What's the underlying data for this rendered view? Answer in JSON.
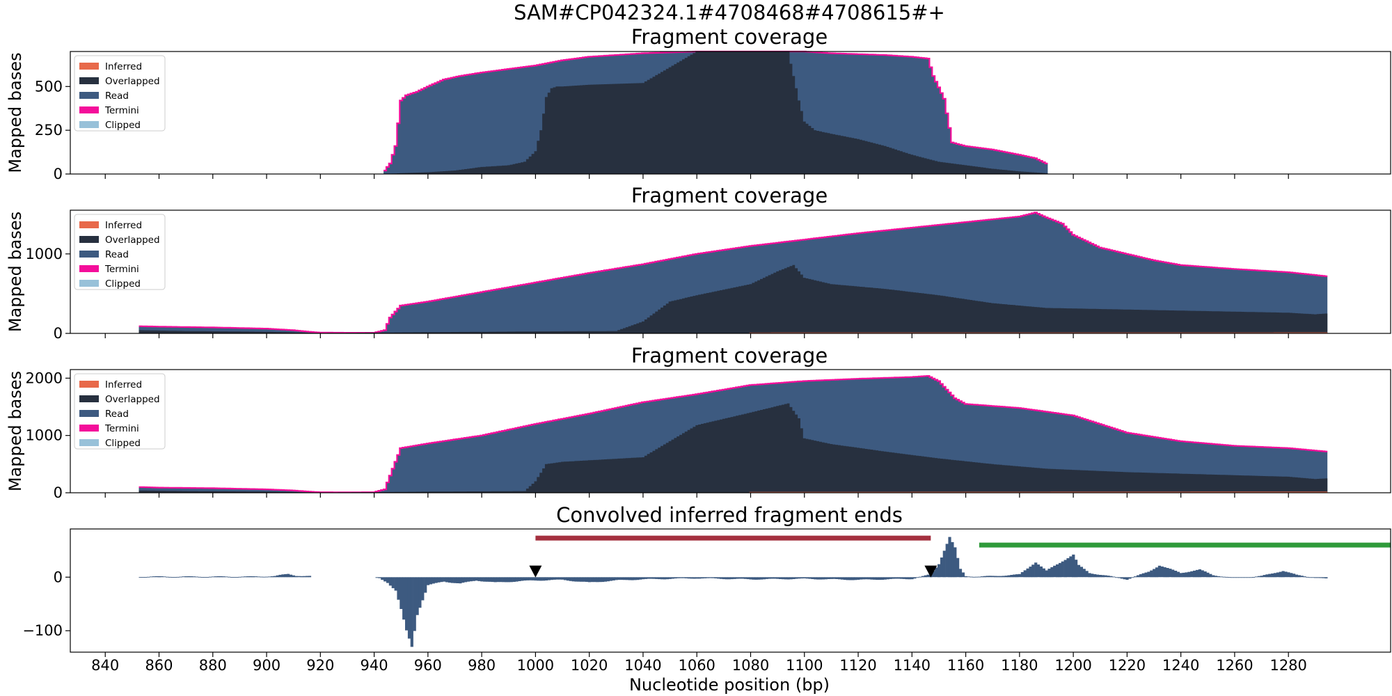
{
  "figure_title": "SAM#CP042324.1#4708468#4708615#+",
  "colors": {
    "Inferred": "#e8694a",
    "Overlapped": "#27303f",
    "Read": "#3d5a80",
    "Termini": "#f40e9a",
    "Clipped": "#98c1d9",
    "convolved": "#3d5a80",
    "red_bar": "#a4303f",
    "green_bar": "#2f9a3a"
  },
  "x_axis": {
    "label": "Nucleotide position (bp)",
    "range": [
      827,
      1318
    ],
    "ticks": [
      840,
      860,
      880,
      900,
      920,
      940,
      960,
      980,
      1000,
      1020,
      1040,
      1060,
      1080,
      1100,
      1120,
      1140,
      1160,
      1180,
      1200,
      1220,
      1240,
      1260,
      1280
    ]
  },
  "chart_data": [
    {
      "type": "area",
      "title": "Fragment coverage",
      "ylabel": "Mapped bases",
      "ylim": [
        0,
        700
      ],
      "yticks": [
        0,
        250,
        500
      ],
      "legend": [
        "Inferred",
        "Overlapped",
        "Read",
        "Termini",
        "Clipped"
      ],
      "legend_position": "upper-left",
      "series": [
        {
          "name": "Read",
          "x": [
            944,
            946,
            948,
            950,
            952,
            956,
            960,
            966,
            972,
            980,
            990,
            1000,
            1010,
            1020,
            1040,
            1060,
            1080,
            1095,
            1100,
            1110,
            1120,
            1130,
            1140,
            1146,
            1148,
            1152,
            1155,
            1160,
            1170,
            1180,
            1186,
            1190
          ],
          "y": [
            20,
            60,
            160,
            420,
            450,
            470,
            500,
            540,
            560,
            580,
            600,
            620,
            650,
            670,
            690,
            700,
            700,
            700,
            700,
            690,
            685,
            680,
            670,
            660,
            560,
            430,
            180,
            160,
            140,
            110,
            90,
            60
          ]
        },
        {
          "name": "Overlapped",
          "x": [
            944,
            950,
            960,
            970,
            980,
            990,
            996,
            1000,
            1002,
            1004,
            1006,
            1008,
            1010,
            1020,
            1040,
            1060,
            1080,
            1094,
            1096,
            1098,
            1100,
            1104,
            1110,
            1120,
            1130,
            1140,
            1150,
            1160,
            1170,
            1180,
            1190
          ],
          "y": [
            0,
            5,
            10,
            20,
            40,
            50,
            70,
            130,
            250,
            440,
            490,
            500,
            500,
            510,
            520,
            700,
            700,
            700,
            560,
            420,
            300,
            250,
            230,
            200,
            160,
            110,
            70,
            50,
            30,
            15,
            5
          ]
        },
        {
          "name": "Termini",
          "x": [
            944,
            1190
          ],
          "y": [
            0,
            0
          ]
        }
      ]
    },
    {
      "type": "area",
      "title": "Fragment coverage",
      "ylabel": "Mapped bases",
      "ylim": [
        0,
        1550
      ],
      "yticks": [
        0,
        1000
      ],
      "legend": [
        "Inferred",
        "Overlapped",
        "Read",
        "Termini",
        "Clipped"
      ],
      "legend_position": "upper-left",
      "series": [
        {
          "name": "Read",
          "x": [
            853,
            860,
            880,
            900,
            910,
            916,
            920,
            930,
            940,
            944,
            946,
            950,
            960,
            980,
            1000,
            1020,
            1040,
            1060,
            1080,
            1100,
            1120,
            1140,
            1160,
            1180,
            1186,
            1190,
            1196,
            1200,
            1210,
            1220,
            1230,
            1240,
            1260,
            1280,
            1294
          ],
          "y": [
            90,
            85,
            75,
            60,
            40,
            20,
            10,
            8,
            8,
            40,
            200,
            350,
            400,
            520,
            640,
            760,
            870,
            1000,
            1100,
            1180,
            1260,
            1330,
            1400,
            1470,
            1520,
            1460,
            1380,
            1240,
            1080,
            1000,
            920,
            860,
            810,
            770,
            720
          ]
        },
        {
          "name": "Overlapped",
          "x": [
            853,
            870,
            900,
            920,
            940,
            960,
            980,
            1000,
            1030,
            1040,
            1050,
            1060,
            1080,
            1090,
            1096,
            1100,
            1110,
            1130,
            1150,
            1170,
            1190,
            1220,
            1250,
            1280,
            1290,
            1294
          ],
          "y": [
            40,
            30,
            20,
            5,
            10,
            15,
            20,
            25,
            30,
            150,
            400,
            480,
            620,
            780,
            860,
            700,
            620,
            560,
            480,
            380,
            320,
            300,
            280,
            260,
            240,
            250
          ]
        },
        {
          "name": "Inferred",
          "x": [
            1080,
            1294
          ],
          "y": [
            10,
            12
          ]
        }
      ]
    },
    {
      "type": "area",
      "title": "Fragment coverage",
      "ylabel": "Mapped bases",
      "ylim": [
        0,
        2150
      ],
      "yticks": [
        0,
        1000,
        2000
      ],
      "legend": [
        "Inferred",
        "Overlapped",
        "Read",
        "Termini",
        "Clipped"
      ],
      "legend_position": "upper-left",
      "series": [
        {
          "name": "Read",
          "x": [
            853,
            860,
            880,
            900,
            910,
            916,
            920,
            930,
            940,
            944,
            946,
            950,
            960,
            980,
            1000,
            1020,
            1040,
            1060,
            1080,
            1100,
            1120,
            1140,
            1146,
            1150,
            1156,
            1160,
            1180,
            1200,
            1210,
            1220,
            1240,
            1260,
            1280,
            1294
          ],
          "y": [
            100,
            90,
            80,
            60,
            40,
            20,
            10,
            8,
            10,
            60,
            300,
            780,
            860,
            1000,
            1200,
            1380,
            1580,
            1720,
            1880,
            1950,
            1990,
            2020,
            2040,
            1950,
            1650,
            1550,
            1480,
            1350,
            1200,
            1050,
            900,
            820,
            780,
            720
          ]
        },
        {
          "name": "Overlapped",
          "x": [
            853,
            870,
            900,
            920,
            940,
            960,
            980,
            996,
            1000,
            1004,
            1010,
            1040,
            1050,
            1060,
            1080,
            1094,
            1098,
            1100,
            1110,
            1130,
            1150,
            1170,
            1190,
            1220,
            1250,
            1280,
            1290,
            1294
          ],
          "y": [
            40,
            30,
            20,
            5,
            10,
            20,
            25,
            30,
            200,
            500,
            540,
            620,
            900,
            1180,
            1400,
            1560,
            1300,
            950,
            850,
            720,
            600,
            500,
            420,
            360,
            320,
            280,
            240,
            250
          ]
        },
        {
          "name": "Inferred",
          "x": [
            1080,
            1294
          ],
          "y": [
            15,
            20
          ]
        }
      ]
    },
    {
      "type": "bar",
      "title": "Convolved inferred fragment ends",
      "ylabel": "",
      "ylim": [
        -140,
        90
      ],
      "yticks": [
        -100,
        0
      ],
      "series": [
        {
          "name": "convolved",
          "x": [
            853,
            858,
            866,
            876,
            885,
            895,
            903,
            908,
            911,
            914,
            942,
            945,
            948,
            950,
            952,
            954,
            956,
            960,
            966,
            972,
            978,
            985,
            992,
            1000,
            1010,
            1020,
            1030,
            1040,
            1050,
            1060,
            1080,
            1100,
            1120,
            1140,
            1147,
            1150,
            1152,
            1154,
            1156,
            1158,
            1160,
            1165,
            1170,
            1180,
            1186,
            1190,
            1196,
            1200,
            1202,
            1206,
            1212,
            1220,
            1228,
            1232,
            1240,
            1247,
            1252,
            1260,
            1270,
            1278,
            1283,
            1290,
            1294
          ],
          "y": [
            1,
            1,
            1,
            1,
            1,
            1,
            2,
            6,
            3,
            2,
            -2,
            -10,
            -25,
            -60,
            -100,
            -130,
            -70,
            -15,
            -8,
            -12,
            -6,
            -10,
            -8,
            -6,
            -5,
            -10,
            -6,
            -4,
            -3,
            -2,
            -4,
            -3,
            -5,
            -3,
            5,
            25,
            50,
            75,
            55,
            15,
            2,
            1,
            2,
            5,
            28,
            12,
            30,
            42,
            22,
            8,
            3,
            -4,
            10,
            22,
            8,
            14,
            4,
            -2,
            2,
            12,
            4,
            -1,
            -3
          ]
        }
      ],
      "markers": [
        {
          "label": "down-triangle",
          "x": 1000,
          "y": 10
        },
        {
          "label": "down-triangle",
          "x": 1147,
          "y": 10
        }
      ],
      "bars": [
        {
          "color": "red",
          "x": [
            1000,
            1147
          ],
          "y": 73
        },
        {
          "color": "green",
          "x": [
            1165,
            1318
          ],
          "y": 60
        }
      ]
    }
  ]
}
